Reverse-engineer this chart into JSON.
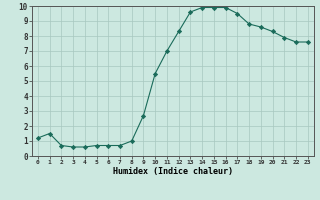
{
  "x": [
    0,
    1,
    2,
    3,
    4,
    5,
    6,
    7,
    8,
    9,
    10,
    11,
    12,
    13,
    14,
    15,
    16,
    17,
    18,
    19,
    20,
    21,
    22,
    23
  ],
  "y": [
    1.2,
    1.5,
    0.7,
    0.6,
    0.6,
    0.7,
    0.7,
    0.7,
    1.0,
    2.7,
    5.5,
    7.0,
    8.3,
    9.6,
    9.9,
    9.9,
    9.9,
    9.5,
    8.8,
    8.6,
    8.3,
    7.9,
    7.6,
    7.6
  ],
  "line_color": "#1a6b5a",
  "marker": "D",
  "marker_size": 2.2,
  "bg_color": "#cce8e0",
  "grid_color": "#a8c8c0",
  "xlabel": "Humidex (Indice chaleur)",
  "xlim": [
    -0.5,
    23.5
  ],
  "ylim": [
    0,
    10
  ],
  "xtick_labels": [
    "0",
    "1",
    "2",
    "3",
    "4",
    "5",
    "6",
    "7",
    "8",
    "9",
    "10",
    "11",
    "12",
    "13",
    "14",
    "15",
    "16",
    "17",
    "18",
    "19",
    "20",
    "21",
    "22",
    "23"
  ],
  "ytick_labels": [
    "0",
    "1",
    "2",
    "3",
    "4",
    "5",
    "6",
    "7",
    "8",
    "9",
    "10"
  ]
}
